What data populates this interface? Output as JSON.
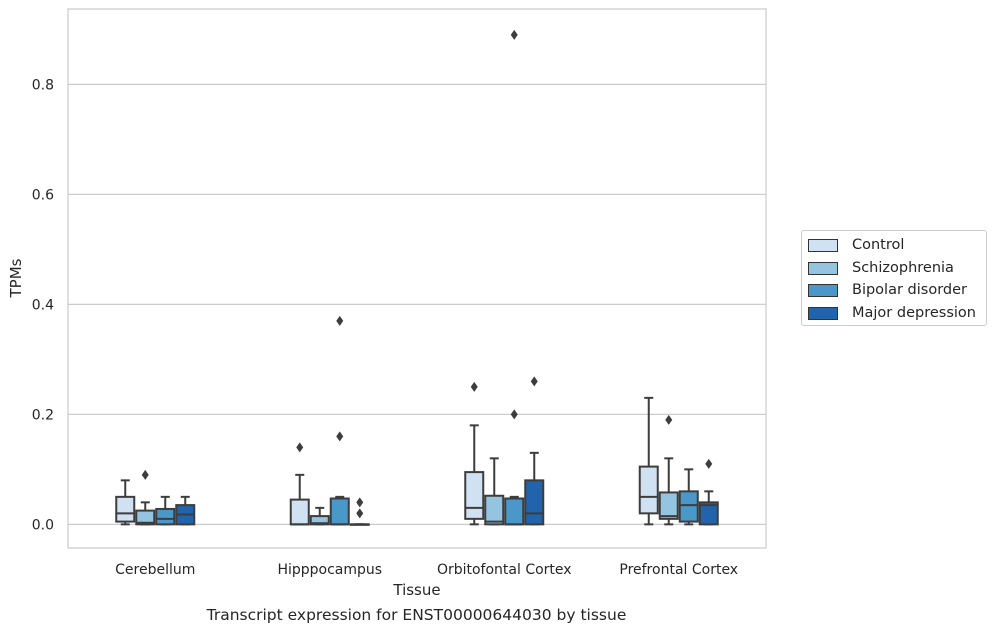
{
  "chart_data": {
    "type": "box",
    "caption": "Transcript expression for ENST00000644030 by tissue",
    "xlabel": "Tissue",
    "ylabel": "TPMs",
    "ylim": [
      -0.043,
      0.937
    ],
    "yticks": [
      0.0,
      0.2,
      0.4,
      0.6,
      0.8
    ],
    "ytick_labels": [
      "0.0",
      "0.2",
      "0.4",
      "0.6",
      "0.8"
    ],
    "grid": "horizontal",
    "legend_position": "right",
    "categories": [
      "Cerebellum",
      "Hipppocampus",
      "Orbitofontal Cortex",
      "Prefrontal Cortex"
    ],
    "series": [
      {
        "name": "Control",
        "color": "#d0e1f2",
        "boxes": [
          {
            "whislo": 0.0,
            "q1": 0.005,
            "med": 0.02,
            "q3": 0.05,
            "whishi": 0.08,
            "fliers": []
          },
          {
            "whislo": 0.0,
            "q1": 0.0,
            "med": 0.0,
            "q3": 0.045,
            "whishi": 0.09,
            "fliers": [
              0.14
            ]
          },
          {
            "whislo": 0.0,
            "q1": 0.01,
            "med": 0.03,
            "q3": 0.095,
            "whishi": 0.18,
            "fliers": [
              0.25
            ]
          },
          {
            "whislo": 0.0,
            "q1": 0.02,
            "med": 0.05,
            "q3": 0.105,
            "whishi": 0.23,
            "fliers": []
          }
        ]
      },
      {
        "name": "Schizophrenia",
        "color": "#94c4df",
        "boxes": [
          {
            "whislo": 0.0,
            "q1": 0.0,
            "med": 0.003,
            "q3": 0.025,
            "whishi": 0.04,
            "fliers": [
              0.09
            ]
          },
          {
            "whislo": 0.0,
            "q1": 0.0,
            "med": 0.002,
            "q3": 0.015,
            "whishi": 0.03,
            "fliers": []
          },
          {
            "whislo": 0.0,
            "q1": 0.0,
            "med": 0.005,
            "q3": 0.052,
            "whishi": 0.12,
            "fliers": []
          },
          {
            "whislo": 0.0,
            "q1": 0.01,
            "med": 0.015,
            "q3": 0.058,
            "whishi": 0.12,
            "fliers": [
              0.19
            ]
          }
        ]
      },
      {
        "name": "Bipolar disorder",
        "color": "#4a98c9",
        "boxes": [
          {
            "whislo": 0.0,
            "q1": 0.0,
            "med": 0.01,
            "q3": 0.028,
            "whishi": 0.05,
            "fliers": []
          },
          {
            "whislo": 0.0,
            "q1": 0.0,
            "med": 0.0,
            "q3": 0.047,
            "whishi": 0.05,
            "fliers": [
              0.16,
              0.37
            ]
          },
          {
            "whislo": 0.0,
            "q1": 0.0,
            "med": 0.0,
            "q3": 0.047,
            "whishi": 0.05,
            "fliers": [
              0.2,
              0.89
            ]
          },
          {
            "whislo": 0.0,
            "q1": 0.005,
            "med": 0.035,
            "q3": 0.06,
            "whishi": 0.1,
            "fliers": []
          }
        ]
      },
      {
        "name": "Major depression",
        "color": "#2164ab",
        "boxes": [
          {
            "whislo": 0.0,
            "q1": 0.0,
            "med": 0.018,
            "q3": 0.035,
            "whishi": 0.05,
            "fliers": []
          },
          {
            "whislo": 0.0,
            "q1": 0.0,
            "med": 0.0,
            "q3": 0.0,
            "whishi": 0.0,
            "fliers": [
              0.02,
              0.04
            ]
          },
          {
            "whislo": 0.0,
            "q1": 0.0,
            "med": 0.02,
            "q3": 0.08,
            "whishi": 0.13,
            "fliers": [
              0.26
            ]
          },
          {
            "whislo": 0.0,
            "q1": 0.0,
            "med": 0.035,
            "q3": 0.04,
            "whishi": 0.06,
            "fliers": [
              0.11
            ]
          }
        ]
      }
    ]
  }
}
